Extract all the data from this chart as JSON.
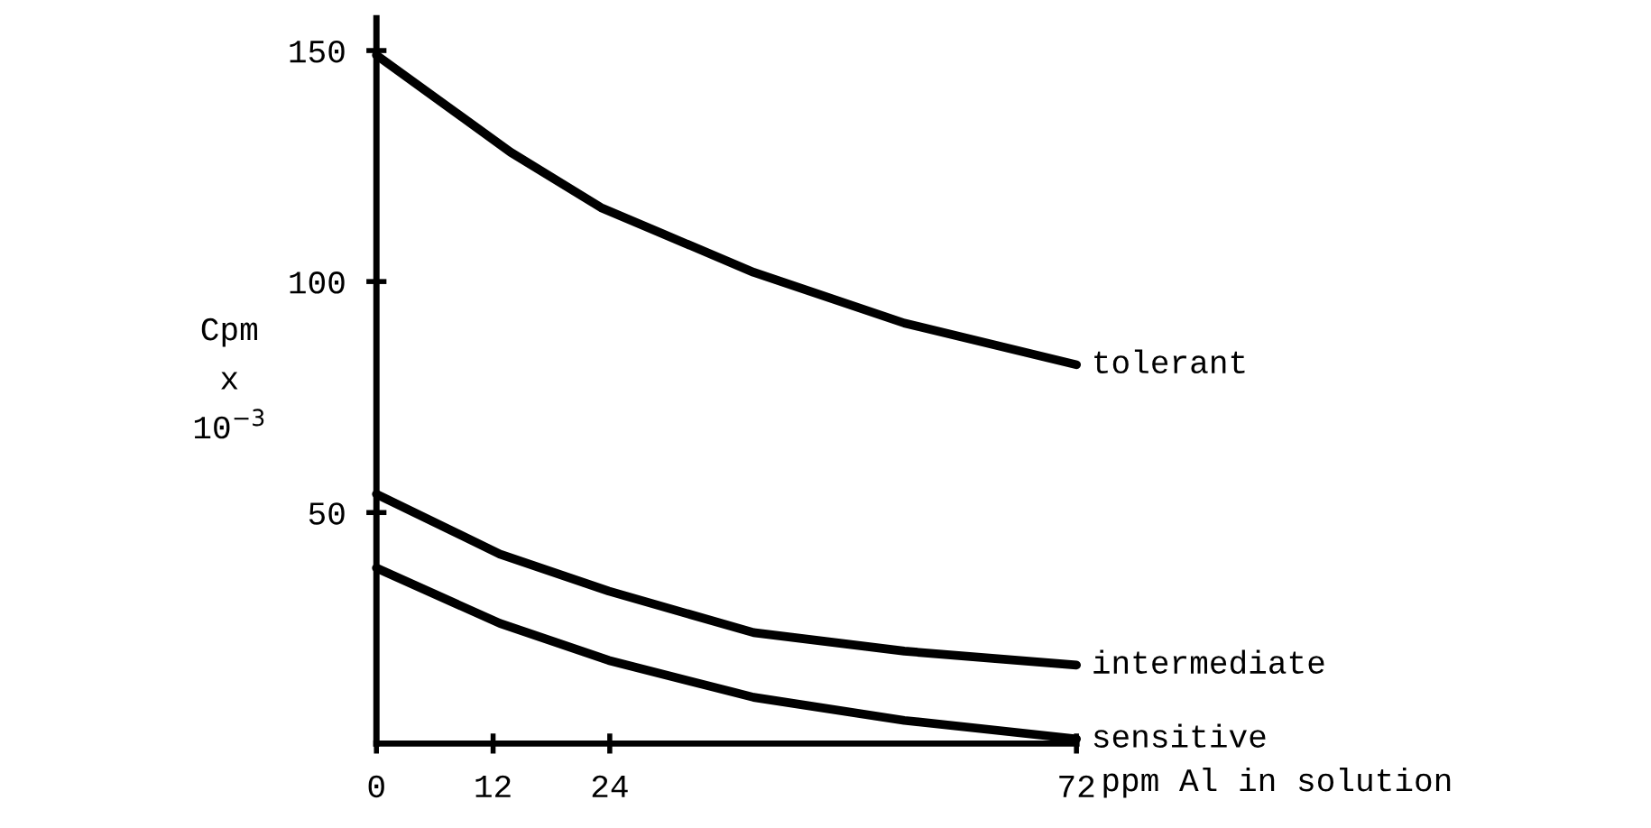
{
  "chart_data": {
    "type": "line",
    "xlabel": "ppm Al in solution",
    "ylabel": "Cpm\nx\n10$^{−3}$",
    "xlim": [
      0,
      72
    ],
    "ylim": [
      0,
      157
    ],
    "xticks": [
      0,
      12,
      24,
      72
    ],
    "yticks": [
      50,
      100,
      150
    ],
    "grid": false,
    "legend": false,
    "marker": "none",
    "line_style": "solid",
    "series": [
      {
        "name": "tolerant",
        "color": "#000000",
        "x": [
          0,
          13.8,
          23.1,
          38.8,
          54.3,
          72
        ],
        "values": [
          149,
          128,
          116,
          102,
          91,
          82
        ]
      },
      {
        "name": "intermediate",
        "color": "#000000",
        "x": [
          0,
          12.7,
          23.9,
          38.8,
          54.3,
          72
        ],
        "values": [
          54,
          41,
          33,
          24,
          20,
          17
        ]
      },
      {
        "name": "sensitive",
        "color": "#000000",
        "x": [
          0,
          12.7,
          23.9,
          38.8,
          54.3,
          72
        ],
        "values": [
          38,
          26,
          18,
          10,
          5,
          1
        ]
      }
    ]
  }
}
